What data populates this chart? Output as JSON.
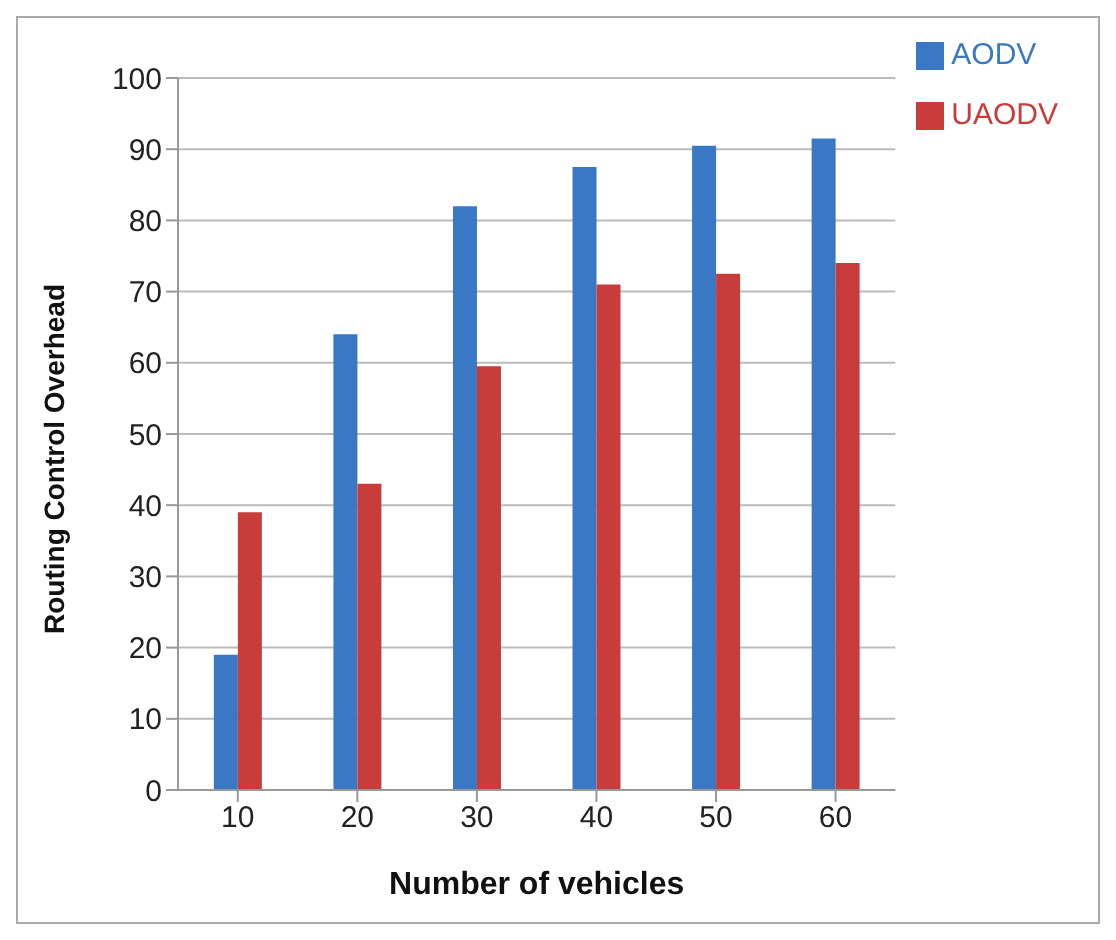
{
  "chart_data": {
    "type": "bar",
    "xlabel": "Number of vehicles",
    "ylabel": "Routing Control Overhead",
    "categories": [
      "10",
      "20",
      "30",
      "40",
      "50",
      "60"
    ],
    "series": [
      {
        "name": "AODV",
        "color": "#3a78c6",
        "values": [
          19,
          64,
          82,
          87.5,
          90.5,
          91.5
        ]
      },
      {
        "name": "UAODV",
        "color": "#c83c3c",
        "values": [
          39,
          43,
          59.5,
          71,
          72.5,
          74
        ]
      }
    ],
    "ylim": [
      0,
      100
    ],
    "yticks": [
      0,
      10,
      20,
      30,
      40,
      50,
      60,
      70,
      80,
      90,
      100
    ],
    "grid": "y",
    "legend": "top right"
  }
}
